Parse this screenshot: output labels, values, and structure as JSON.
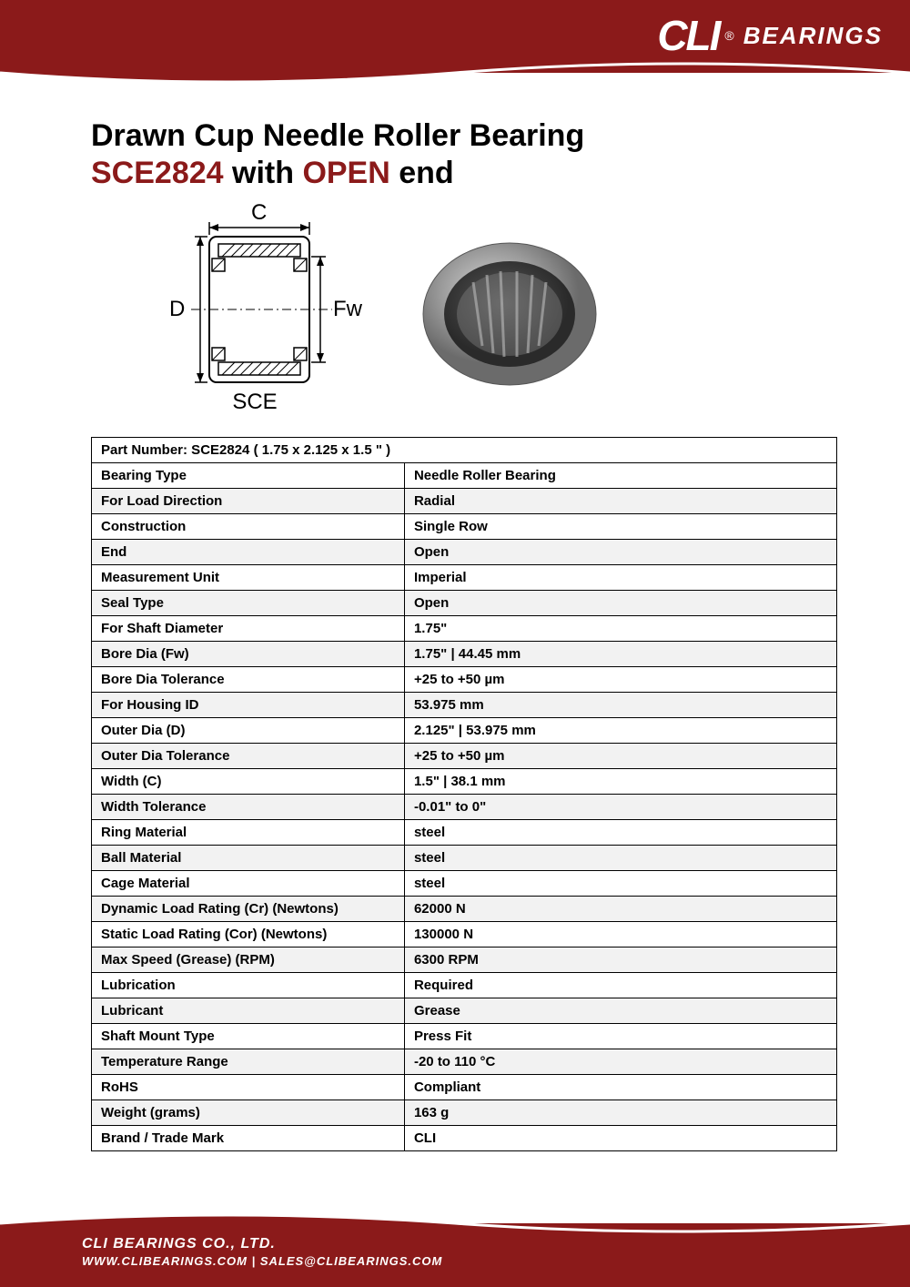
{
  "brand": {
    "logo_text": "CLI",
    "logo_suffix": "BEARINGS",
    "registered": "®",
    "primary_color": "#8b1a1a",
    "text_color": "#ffffff"
  },
  "title": {
    "line1": "Drawn Cup Needle Roller Bearing",
    "part": "SCE2824",
    "with": " with ",
    "end_type": "OPEN",
    "end_suffix": " end"
  },
  "diagram": {
    "dim_c": "C",
    "dim_d": "D",
    "dim_fw": "Fw",
    "type_label": "SCE",
    "outline_color": "#000000",
    "hatch_color": "#666666"
  },
  "spec_header": "Part Number: SCE2824  ( 1.75 x 2.125 x 1.5 \" )",
  "specs": [
    {
      "label": "Bearing Type",
      "value": "Needle Roller Bearing"
    },
    {
      "label": "For Load Direction",
      "value": "Radial"
    },
    {
      "label": "Construction",
      "value": "Single Row"
    },
    {
      "label": "End",
      "value": "Open"
    },
    {
      "label": "Measurement Unit",
      "value": "Imperial"
    },
    {
      "label": "Seal Type",
      "value": "Open"
    },
    {
      "label": "For Shaft Diameter",
      "value": "1.75\""
    },
    {
      "label": "Bore Dia (Fw)",
      "value": "1.75\"  |  44.45 mm"
    },
    {
      "label": "Bore Dia Tolerance",
      "value": "+25 to +50 µm"
    },
    {
      "label": "For Housing ID",
      "value": "53.975 mm"
    },
    {
      "label": "Outer Dia (D)",
      "value": "2.125\"  |  53.975 mm"
    },
    {
      "label": "Outer Dia Tolerance",
      "value": "+25 to +50 µm"
    },
    {
      "label": "Width (C)",
      "value": "1.5\"  |  38.1 mm"
    },
    {
      "label": "Width Tolerance",
      "value": "-0.01\" to 0\""
    },
    {
      "label": "Ring Material",
      "value": "steel"
    },
    {
      "label": "Ball Material",
      "value": "steel"
    },
    {
      "label": "Cage Material",
      "value": "steel"
    },
    {
      "label": "Dynamic Load Rating (Cr) (Newtons)",
      "value": "62000 N"
    },
    {
      "label": "Static Load Rating (Cor) (Newtons)",
      "value": "130000 N"
    },
    {
      "label": "Max Speed (Grease) (RPM)",
      "value": "6300 RPM"
    },
    {
      "label": "Lubrication",
      "value": "Required"
    },
    {
      "label": "Lubricant",
      "value": "Grease"
    },
    {
      "label": "Shaft Mount Type",
      "value": "Press Fit"
    },
    {
      "label": "Temperature Range",
      "value": "-20 to 110 °C"
    },
    {
      "label": "RoHS",
      "value": "Compliant"
    },
    {
      "label": "Weight (grams)",
      "value": "163 g"
    },
    {
      "label": "Brand / Trade Mark",
      "value": "CLI"
    }
  ],
  "footer": {
    "company": "CLI BEARINGS CO., LTD.",
    "contact": "WWW.CLIBEARINGS.COM   |   SALES@CLIBEARINGS.COM"
  },
  "table_style": {
    "header_bg": "#8b1a1a",
    "header_color": "#ffffff",
    "border_color": "#000000",
    "row_alt_bg": "#f2f2f2",
    "font_size": 15
  }
}
